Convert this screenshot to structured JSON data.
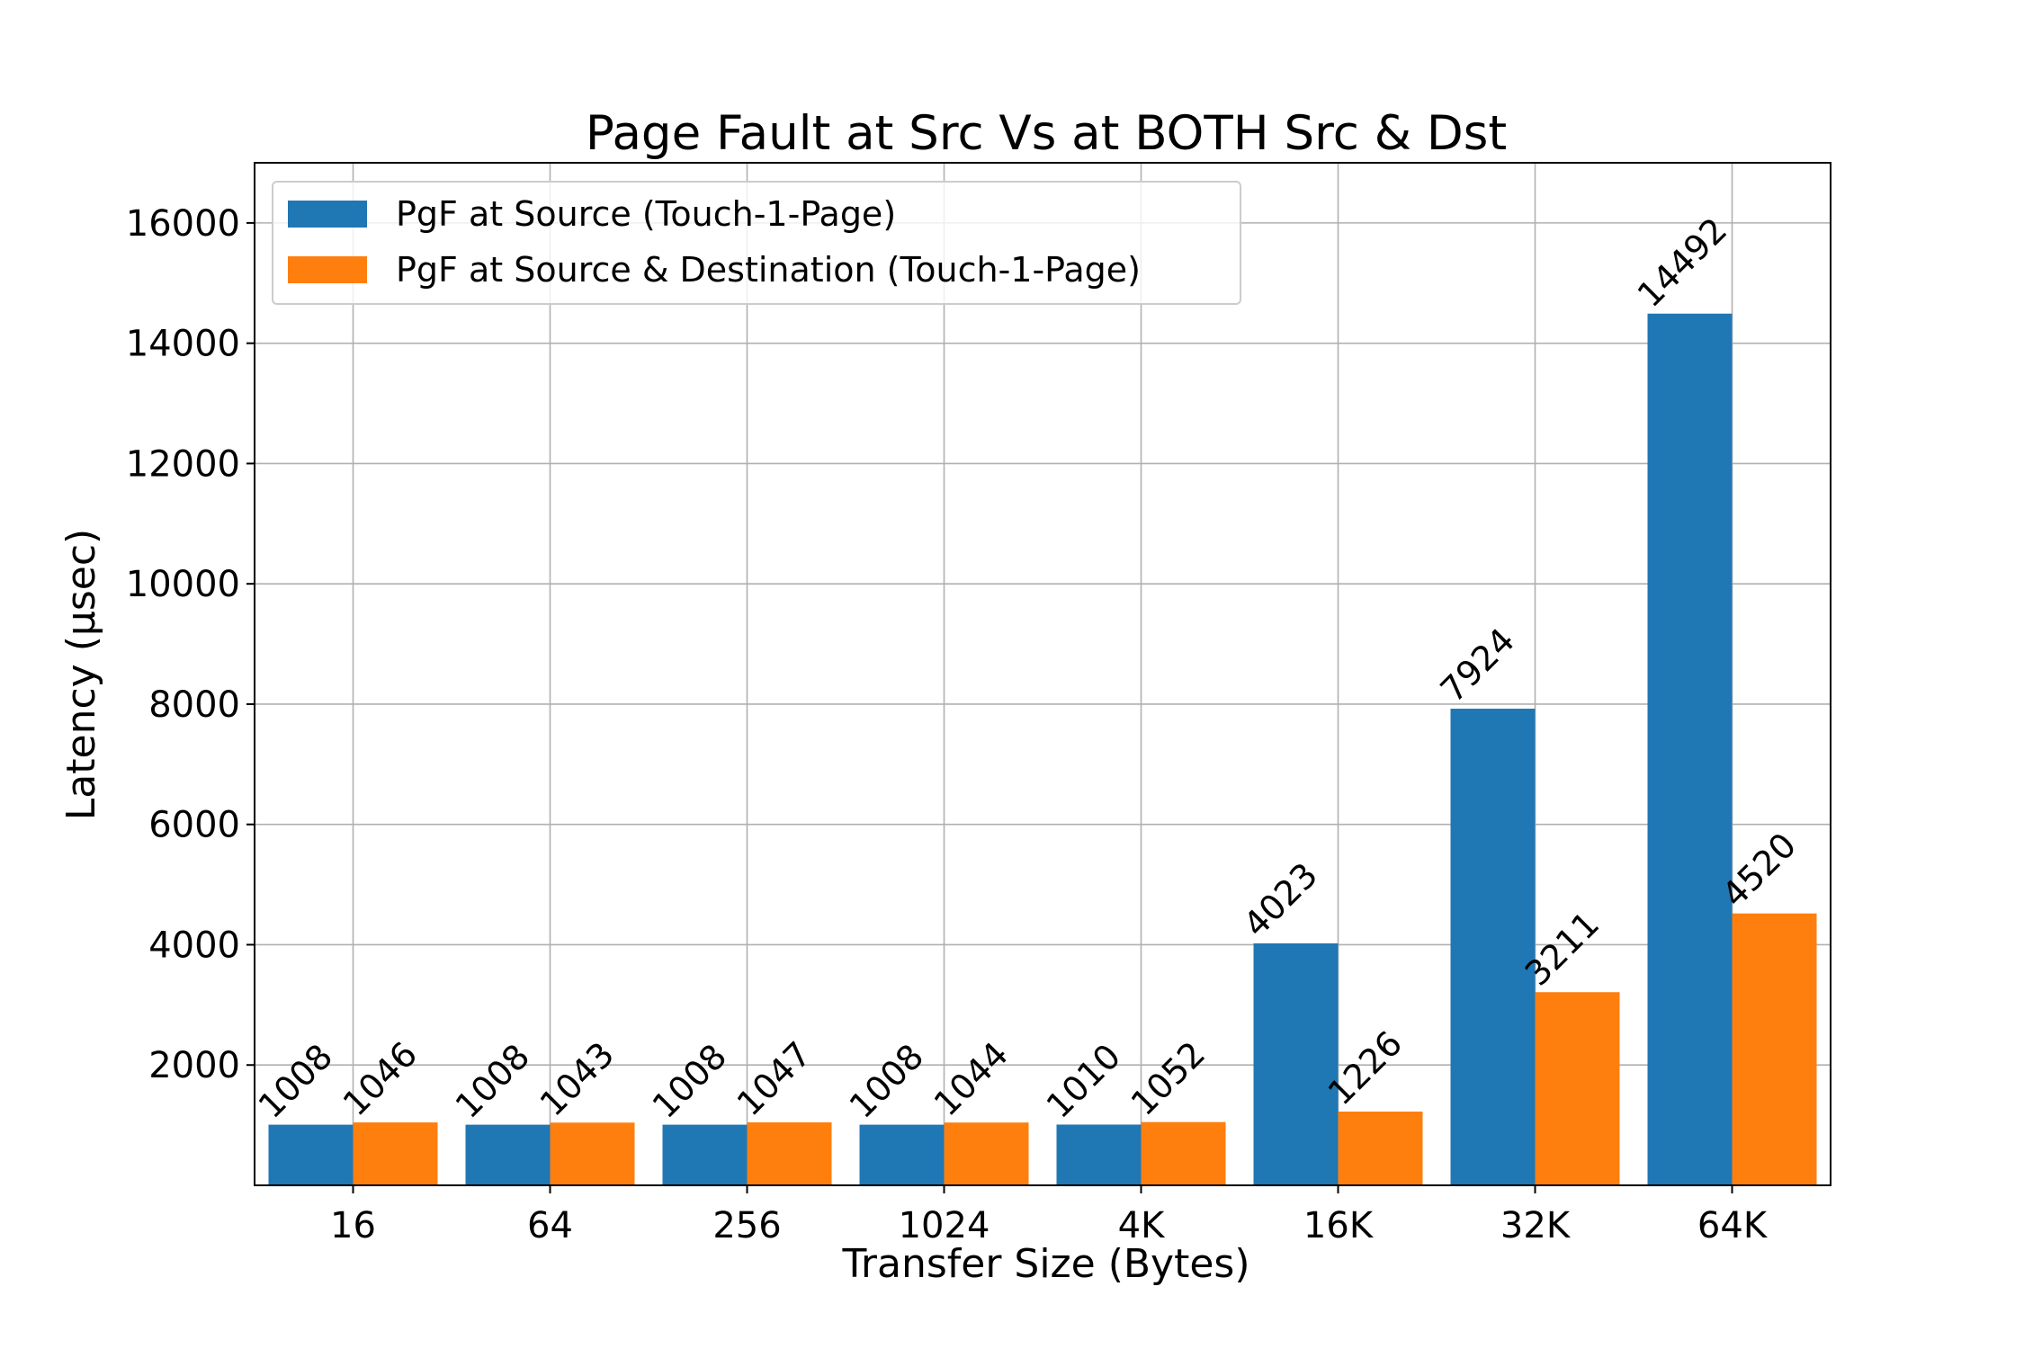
{
  "chart_data": {
    "type": "bar",
    "title": "Page Fault at Src Vs at BOTH Src & Dst",
    "xlabel": "Transfer Size (Bytes)",
    "ylabel": "Latency (µsec)",
    "categories": [
      "16",
      "64",
      "256",
      "1024",
      "4K",
      "16K",
      "32K",
      "64K"
    ],
    "ylim": [
      0,
      17000
    ],
    "yticks": [
      2000,
      4000,
      6000,
      8000,
      10000,
      12000,
      14000,
      16000
    ],
    "grid": true,
    "legend_position": "top-left",
    "series": [
      {
        "name": "PgF at Source (Touch-1-Page)",
        "color": "#1f77b4",
        "values": [
          1008,
          1008,
          1008,
          1008,
          1010,
          4023,
          7924,
          14492
        ]
      },
      {
        "name": "PgF at Source & Destination (Touch-1-Page)",
        "color": "#ff7f0e",
        "values": [
          1046,
          1043,
          1047,
          1044,
          1052,
          1226,
          3211,
          4520
        ]
      }
    ]
  }
}
